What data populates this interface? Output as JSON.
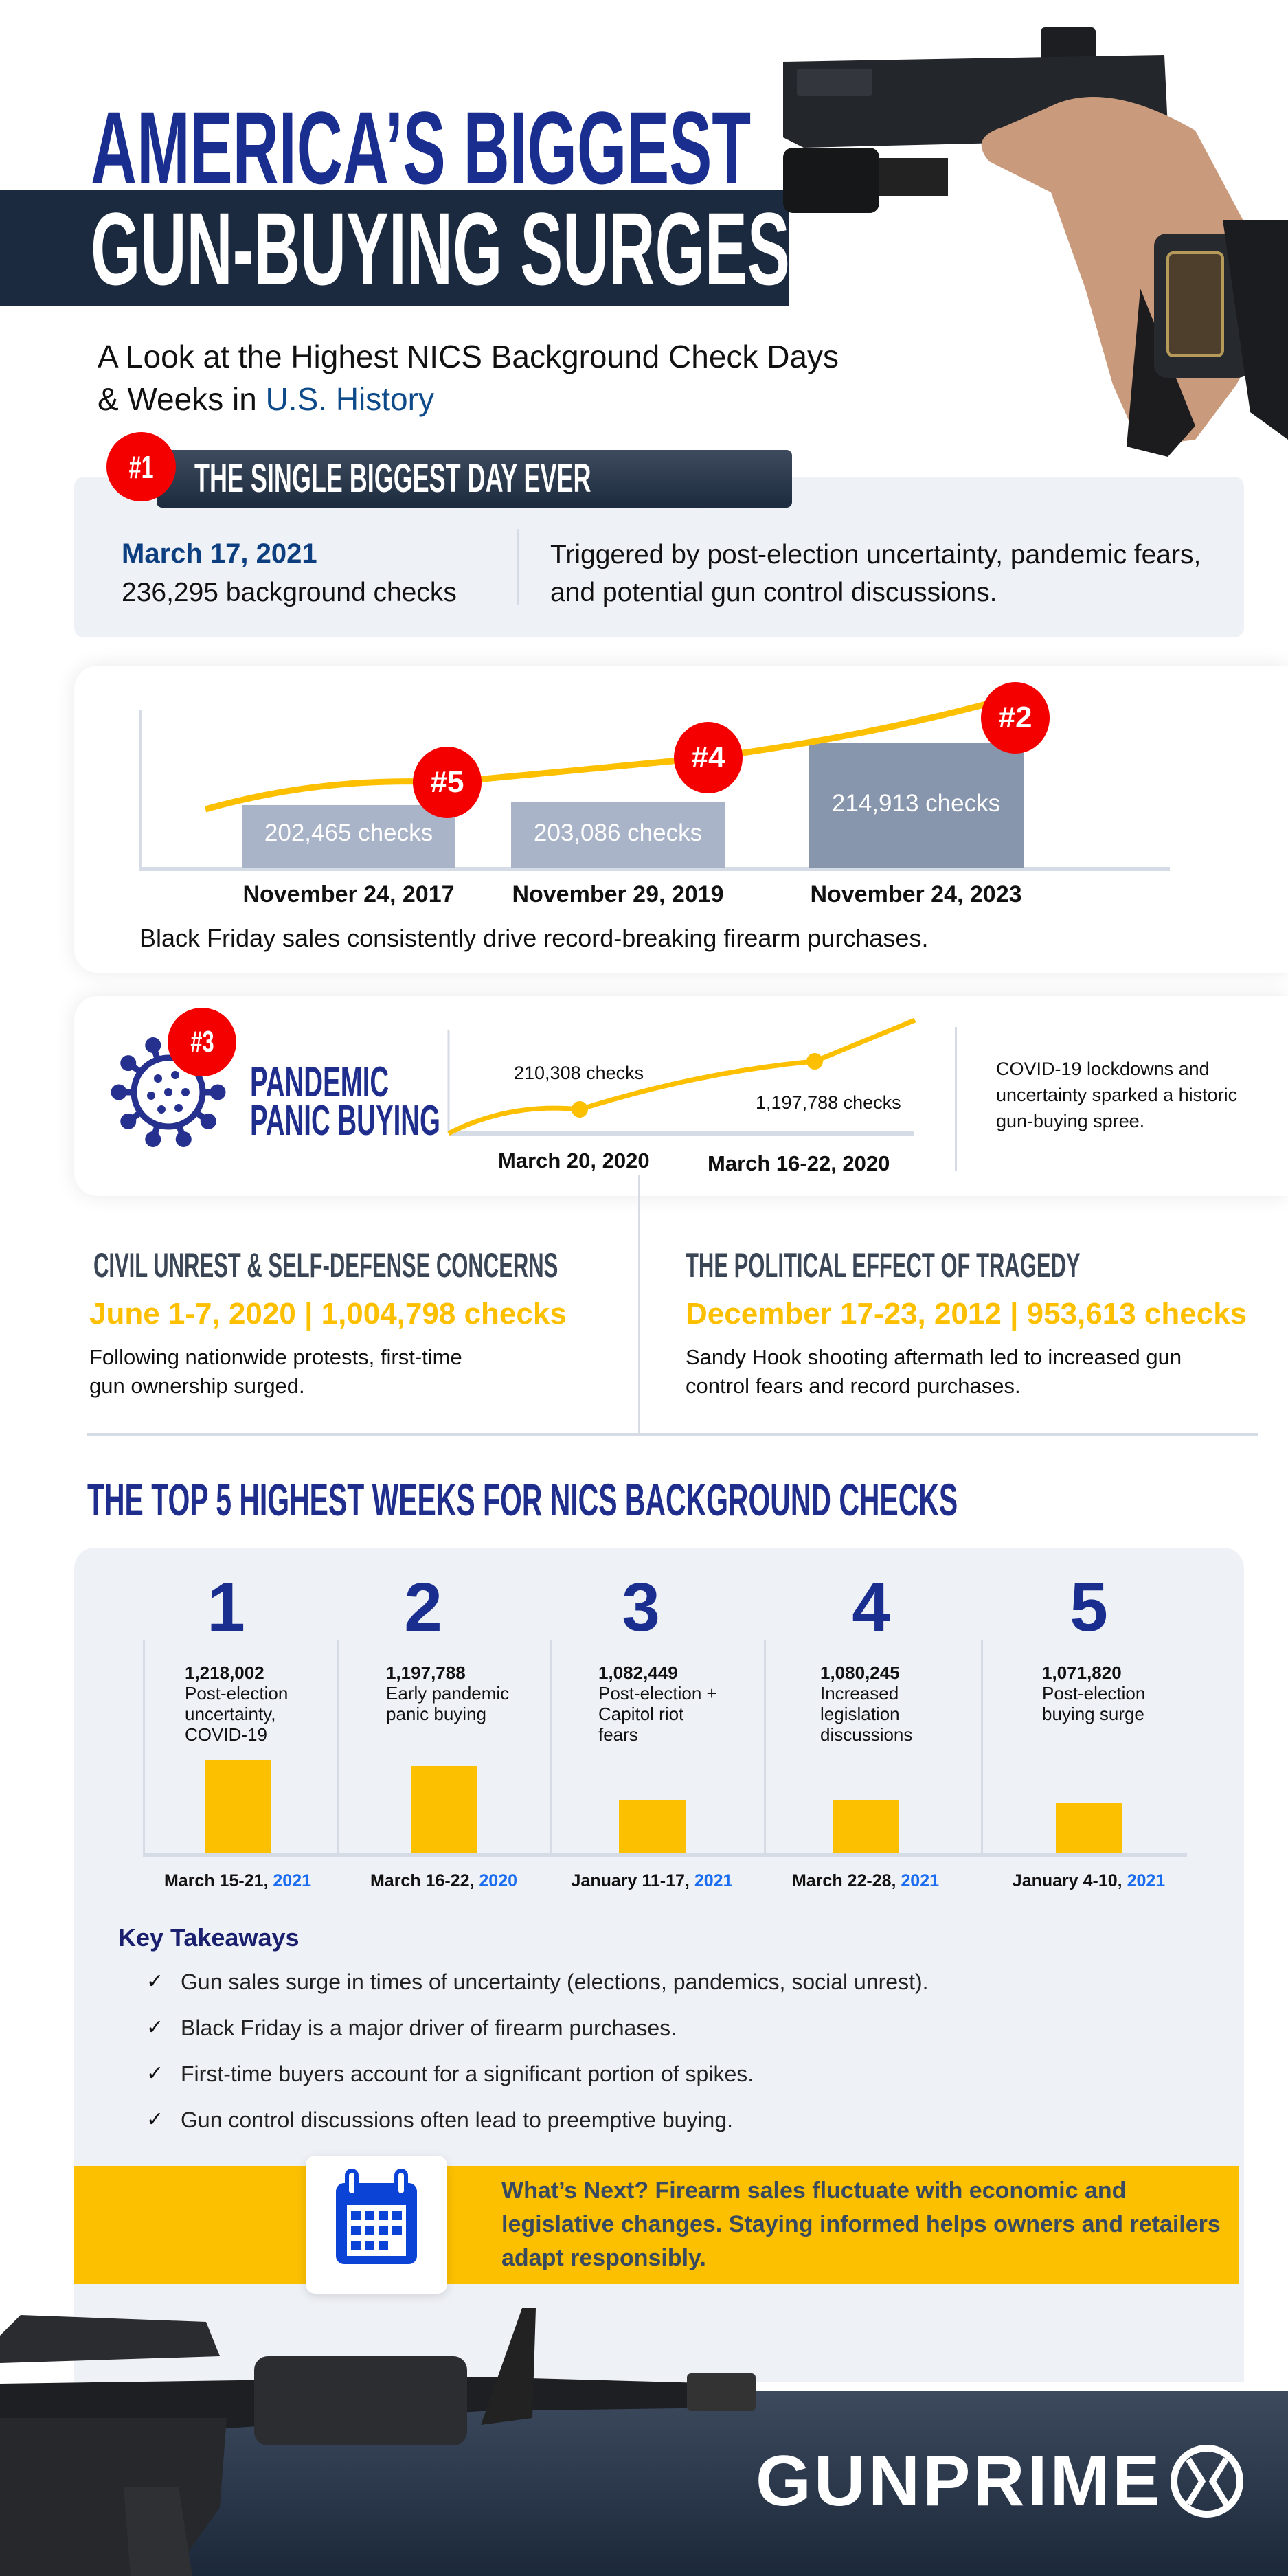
{
  "header": {
    "title_line1": "AMERICA’S BIGGEST",
    "title_line2": "GUN-BUYING SURGES",
    "subtitle_part1": "A Look at the Highest NICS Background Check Days & Weeks in ",
    "subtitle_highlight": "U.S. History"
  },
  "biggest_day": {
    "rank": "#1",
    "heading": "THE SINGLE BIGGEST DAY EVER",
    "date": "March 17, 2021",
    "checks": "236,295 background checks",
    "description": "Triggered by post-election uncertainty, pandemic fears, and potential gun control discussions."
  },
  "black_friday": {
    "bars": [
      {
        "rank": "#5",
        "value": 202465,
        "label": "202,465  checks",
        "date": "November 24, 2017",
        "color": "#aab4c8"
      },
      {
        "rank": "#4",
        "value": 203086,
        "label": "203,086 checks",
        "date": "November 29, 2019",
        "color": "#aab4c8"
      },
      {
        "rank": "#2",
        "value": 214913,
        "label": "214,913 checks",
        "date": "November 24, 2023",
        "color": "#8795ad"
      }
    ],
    "caption": "Black Friday sales consistently drive record-breaking firearm purchases."
  },
  "pandemic": {
    "rank": "#3",
    "title_line1": "PANDEMIC",
    "title_line2": "PANIC BUYING",
    "points": [
      {
        "label": "210,308 checks",
        "date": "March 20, 2020"
      },
      {
        "label": "1,197,788 checks",
        "date": "March 16-22, 2020"
      }
    ],
    "description": "COVID-19 lockdowns and uncertainty sparked a historic gun-buying spree."
  },
  "civil_unrest": {
    "heading": "CIVIL UNREST & SELF-DEFENSE CONCERNS",
    "stat": "June 1-7, 2020 | 1,004,798 checks",
    "description": "Following nationwide protests, first-time gun ownership surged."
  },
  "tragedy": {
    "heading": "THE POLITICAL EFFECT OF TRAGEDY",
    "stat": "December 17-23, 2012 | 953,613 checks",
    "description": "Sandy Hook shooting aftermath led to increased gun control fears and record purchases."
  },
  "top5": {
    "heading": "THE TOP 5 HIGHEST WEEKS FOR NICS BACKGROUND CHECKS",
    "weeks": [
      {
        "rank": "1",
        "value": 1218002,
        "value_label": "1,218,002",
        "reason": "Post-election uncertainty, COVID-19",
        "dates": "March 15-21, ",
        "year": "2021"
      },
      {
        "rank": "2",
        "value": 1197788,
        "value_label": "1,197,788",
        "reason": "Early pandemic panic buying",
        "dates": "March 16-22, ",
        "year": "2020"
      },
      {
        "rank": "3",
        "value": 1082449,
        "value_label": "1,082,449",
        "reason": "Post-election + Capitol riot fears",
        "dates": "January 11-17, ",
        "year": "2021"
      },
      {
        "rank": "4",
        "value": 1080245,
        "value_label": "1,080,245",
        "reason": "Increased legislation discussions",
        "dates": "March 22-28, ",
        "year": "2021"
      },
      {
        "rank": "5",
        "value": 1071820,
        "value_label": "1,071,820",
        "reason": "Post-election buying surge",
        "dates": "January 4-10, ",
        "year": "2021"
      }
    ],
    "bar_color": "#fcc000",
    "year_color": "#1a6cf0"
  },
  "takeaways": {
    "title": "Key Takeaways",
    "items": [
      "Gun sales surge in times of uncertainty (elections, pandemics, social unrest).",
      "Black Friday is a major driver of firearm purchases.",
      "First-time buyers account for a significant portion of spikes.",
      "Gun control discussions often lead to preemptive buying."
    ]
  },
  "whats_next": {
    "icon": "calendar-icon",
    "text": "What’s Next? Firearm sales fluctuate with economic and legislative changes. Staying informed helps owners and retailers adapt responsibly."
  },
  "footer": {
    "brand": "GUNPRIME"
  },
  "colors": {
    "navy": "#1a2e8f",
    "dark": "#1b2a3e",
    "red": "#f50000",
    "yellow": "#fcc000"
  }
}
